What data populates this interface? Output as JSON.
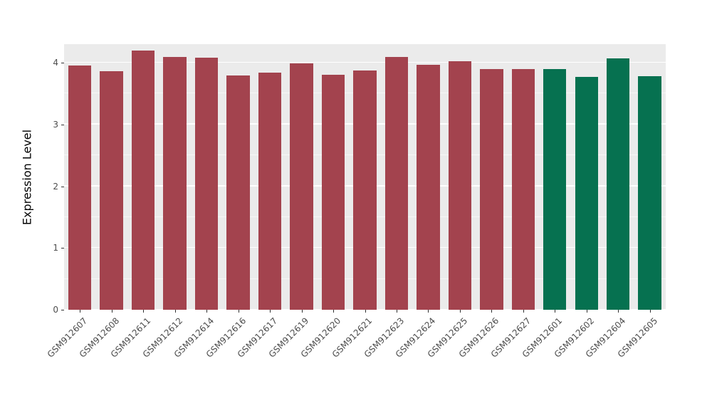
{
  "chart_data": {
    "type": "bar",
    "title": "",
    "xlabel": "",
    "ylabel": "Expression Level",
    "ylim": [
      0,
      4.3
    ],
    "yticks": [
      0,
      1,
      2,
      3,
      4
    ],
    "yticks_minor": [
      0.5,
      1.5,
      2.5,
      3.5
    ],
    "grid": true,
    "legend_position": "none",
    "categories": [
      "GSM912607",
      "GSM912608",
      "GSM912611",
      "GSM912612",
      "GSM912614",
      "GSM912616",
      "GSM912617",
      "GSM912619",
      "GSM912620",
      "GSM912621",
      "GSM912623",
      "GSM912624",
      "GSM912625",
      "GSM912626",
      "GSM912627",
      "GSM912601",
      "GSM912602",
      "GSM912604",
      "GSM912605"
    ],
    "values": [
      3.95,
      3.86,
      4.2,
      4.09,
      4.08,
      3.79,
      3.84,
      3.99,
      3.8,
      3.87,
      4.09,
      3.97,
      4.02,
      3.9,
      3.9,
      3.9,
      3.77,
      4.07,
      3.78
    ],
    "bar_colors": [
      "#A3434E",
      "#A3434E",
      "#A3434E",
      "#A3434E",
      "#A3434E",
      "#A3434E",
      "#A3434E",
      "#A3434E",
      "#A3434E",
      "#A3434E",
      "#A3434E",
      "#A3434E",
      "#A3434E",
      "#A3434E",
      "#A3434E",
      "#067150",
      "#067150",
      "#067150",
      "#067150"
    ],
    "group_colors": {
      "red_group": "#A3434E",
      "green_group": "#067150"
    },
    "panel_bg": "#EBEBEB",
    "grid_color": "#FFFFFF",
    "tick_color": "#333333",
    "tick_label_color": "#4D4D4D"
  }
}
